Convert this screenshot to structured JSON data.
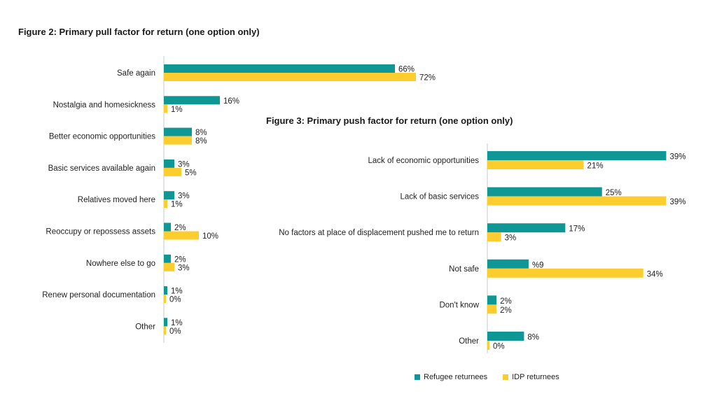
{
  "colors": {
    "refugee": "#0e9794",
    "idp": "#fccd2f",
    "axis": "#c8c8c8"
  },
  "chart_data": [
    {
      "type": "bar",
      "orientation": "horizontal",
      "title": "Figure 2: Primary pull factor for return (one option only)",
      "categories": [
        "Safe again",
        "Nostalgia and homesickness",
        "Better economic opportunities",
        "Basic services available again",
        "Relatives moved here",
        "Reoccupy or repossess assets",
        "Nowhere else to go",
        "Renew personal documentation",
        "Other"
      ],
      "series": [
        {
          "name": "Refugee returnees",
          "values": [
            66,
            16,
            8,
            3,
            3,
            2,
            2,
            1,
            1
          ],
          "labels": [
            "66%",
            "16%",
            "8%",
            "3%",
            "3%",
            "2%",
            "2%",
            "1%",
            "1%"
          ]
        },
        {
          "name": "IDP returnees",
          "values": [
            72,
            1,
            8,
            5,
            1,
            10,
            3,
            0,
            0
          ],
          "labels": [
            "72%",
            "1%",
            "8%",
            "5%",
            "1%",
            "10%",
            "3%",
            "0%",
            "0%"
          ]
        }
      ]
    },
    {
      "type": "bar",
      "orientation": "horizontal",
      "title": "Figure 3: Primary push factor for return (one option only)",
      "categories": [
        "Lack of economic opportunities",
        "Lack of basic services",
        "No factors at place of displacement pushed me to return",
        "Not safe",
        "Don't know",
        "Other"
      ],
      "series": [
        {
          "name": "Refugee returnees",
          "values": [
            39,
            25,
            17,
            9,
            2,
            8
          ],
          "labels": [
            "39%",
            "25%",
            "17%",
            "%9",
            "2%",
            "8%"
          ]
        },
        {
          "name": "IDP returnees",
          "values": [
            21,
            39,
            3,
            34,
            2,
            0
          ],
          "labels": [
            "21%",
            "39%",
            "3%",
            "34%",
            "2%",
            "0%"
          ]
        }
      ]
    }
  ],
  "legend": {
    "items": [
      "Refugee returnees",
      "IDP returnees"
    ]
  }
}
